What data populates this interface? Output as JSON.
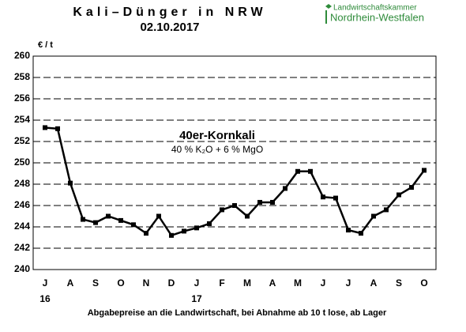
{
  "chart_data": {
    "type": "line",
    "title": "Kali–Dünger in NRW",
    "subtitle": "02.10.2017",
    "logo": [
      "Landwirtschaftskammer",
      "Nordrhein-Westfalen"
    ],
    "y_axis_label": "€ / t",
    "annotations": [
      "40er-Kornkali",
      "40 % K₂O + 6 % MgO"
    ],
    "footer": "Abgabepreise an die Landwirtschaft, bei Abnahme ab 10 t lose, ab Lager",
    "categories": [
      "J",
      null,
      "A",
      null,
      "S",
      null,
      "O",
      null,
      "N",
      null,
      "D",
      null,
      "J",
      null,
      "F",
      null,
      "M",
      null,
      "A",
      null,
      "M",
      null,
      "J",
      null,
      "J",
      null,
      "A",
      null,
      "S",
      null,
      "O"
    ],
    "category_years": [
      "16",
      null,
      null,
      null,
      null,
      null,
      null,
      null,
      null,
      null,
      null,
      null,
      "17",
      null,
      null,
      null,
      null,
      null,
      null,
      null,
      null,
      null,
      null,
      null,
      null,
      null,
      null,
      null,
      null,
      null,
      null
    ],
    "series": [
      {
        "name": "40er-Kornkali",
        "color": "#000000",
        "values": [
          253.3,
          253.2,
          248.1,
          244.7,
          244.4,
          245.0,
          244.6,
          244.2,
          243.4,
          245.0,
          243.2,
          243.6,
          243.9,
          244.3,
          245.6,
          246.0,
          245.0,
          246.3,
          246.3,
          247.6,
          249.2,
          249.2,
          246.8,
          246.7,
          243.7,
          243.4,
          245.0,
          245.6,
          247.0,
          247.7,
          249.3
        ]
      }
    ],
    "ylim": [
      240,
      260
    ],
    "yticks": [
      240,
      242,
      244,
      246,
      248,
      250,
      252,
      254,
      256,
      258,
      260
    ],
    "grid": true
  }
}
